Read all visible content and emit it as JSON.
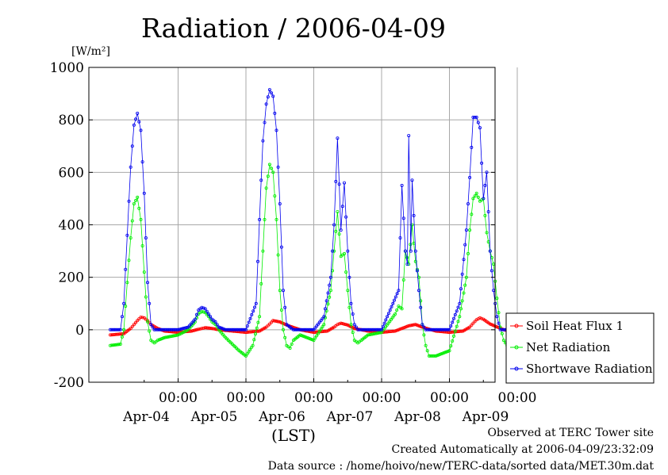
{
  "chart_data": {
    "type": "line",
    "title": "Radiation / 2006-04-09",
    "ylabel": "[W/m²]",
    "xlabel": "(LST)",
    "ylim": [
      -200,
      1000
    ],
    "yticks": [
      "1000",
      "800",
      "600",
      "400",
      "200",
      "0",
      "-200"
    ],
    "xlim": [
      0,
      6
    ],
    "xticks": [
      {
        "x": 1,
        "time": "00:00",
        "date": "Apr-04"
      },
      {
        "x": 2,
        "time": "00:00",
        "date": "Apr-05"
      },
      {
        "x": 3,
        "time": "00:00",
        "date": "Apr-06"
      },
      {
        "x": 4,
        "time": "00:00",
        "date": "Apr-07"
      },
      {
        "x": 5,
        "time": "00:00",
        "date": "Apr-08"
      },
      {
        "x": 6,
        "time": "00:00",
        "date": "Apr-09"
      }
    ],
    "grid": true,
    "legend_position": "right",
    "series": [
      {
        "name": "Soil Heat Flux 1",
        "color": "#ff0000",
        "x": [
          0,
          0.2,
          0.3,
          0.35,
          0.4,
          0.45,
          0.5,
          0.55,
          0.6,
          0.7,
          0.8,
          1.0,
          1.2,
          1.3,
          1.35,
          1.4,
          1.5,
          1.6,
          1.8,
          2.0,
          2.2,
          2.3,
          2.35,
          2.4,
          2.5,
          2.6,
          2.8,
          3.0,
          3.2,
          3.3,
          3.35,
          3.4,
          3.5,
          3.6,
          3.8,
          4.0,
          4.2,
          4.3,
          4.4,
          4.5,
          4.6,
          4.8,
          5.0,
          5.2,
          5.3,
          5.35,
          5.4,
          5.45,
          5.5,
          5.6,
          5.8,
          5.95
        ],
        "y": [
          -20,
          -15,
          5,
          20,
          35,
          48,
          45,
          35,
          20,
          5,
          -5,
          -10,
          -5,
          2,
          5,
          8,
          5,
          0,
          -5,
          -10,
          -5,
          10,
          22,
          35,
          30,
          18,
          0,
          -10,
          -5,
          10,
          20,
          25,
          18,
          5,
          -5,
          -10,
          -5,
          5,
          15,
          20,
          10,
          -5,
          -10,
          -5,
          10,
          25,
          38,
          45,
          40,
          22,
          0,
          -10
        ]
      },
      {
        "name": "Net Radiation",
        "color": "#00ee00",
        "x": [
          0,
          0.15,
          0.2,
          0.25,
          0.3,
          0.35,
          0.4,
          0.45,
          0.5,
          0.55,
          0.6,
          0.65,
          0.7,
          0.8,
          1.0,
          1.15,
          1.25,
          1.3,
          1.35,
          1.4,
          1.45,
          1.5,
          1.55,
          1.6,
          1.7,
          1.9,
          2.0,
          2.1,
          2.2,
          2.25,
          2.3,
          2.35,
          2.4,
          2.45,
          2.5,
          2.55,
          2.6,
          2.65,
          2.7,
          2.8,
          3.0,
          3.15,
          3.25,
          3.3,
          3.35,
          3.4,
          3.45,
          3.5,
          3.55,
          3.6,
          3.65,
          3.7,
          3.8,
          4.0,
          4.2,
          4.25,
          4.3,
          4.35,
          4.4,
          4.45,
          4.5,
          4.55,
          4.6,
          4.65,
          4.7,
          4.8,
          5.0,
          5.15,
          5.25,
          5.3,
          5.35,
          5.4,
          5.45,
          5.5,
          5.55,
          5.6,
          5.65,
          5.7,
          5.75,
          5.8,
          5.85,
          5.9,
          5.95
        ],
        "y": [
          -60,
          -55,
          0,
          180,
          350,
          480,
          505,
          420,
          220,
          30,
          -40,
          -50,
          -40,
          -30,
          -20,
          0,
          30,
          60,
          70,
          65,
          50,
          30,
          20,
          0,
          -30,
          -80,
          -100,
          -60,
          50,
          300,
          540,
          630,
          600,
          420,
          150,
          0,
          -60,
          -70,
          -40,
          -20,
          -40,
          20,
          150,
          300,
          450,
          280,
          290,
          150,
          20,
          -40,
          -50,
          -40,
          -20,
          -10,
          60,
          90,
          80,
          300,
          250,
          400,
          260,
          200,
          20,
          -60,
          -100,
          -100,
          -80,
          50,
          200,
          380,
          500,
          520,
          490,
          500,
          370,
          300,
          250,
          120,
          10,
          -40,
          -60,
          -50,
          -60
        ]
      },
      {
        "name": "Shortwave Radiation",
        "color": "#0000ee",
        "x": [
          0,
          0.15,
          0.2,
          0.25,
          0.3,
          0.35,
          0.4,
          0.45,
          0.5,
          0.55,
          0.6,
          0.65,
          0.7,
          0.8,
          1.0,
          1.15,
          1.25,
          1.3,
          1.35,
          1.4,
          1.45,
          1.5,
          1.55,
          1.6,
          1.7,
          2.0,
          2.15,
          2.2,
          2.25,
          2.3,
          2.35,
          2.4,
          2.45,
          2.5,
          2.55,
          2.6,
          2.7,
          3.0,
          3.15,
          3.25,
          3.3,
          3.35,
          3.4,
          3.45,
          3.5,
          3.55,
          3.6,
          3.65,
          3.7,
          4.0,
          4.25,
          4.3,
          4.35,
          4.38,
          4.4,
          4.43,
          4.45,
          4.5,
          4.55,
          4.6,
          4.65,
          4.7,
          5.0,
          5.15,
          5.25,
          5.3,
          5.35,
          5.4,
          5.45,
          5.5,
          5.55,
          5.6,
          5.65,
          5.7,
          5.75,
          5.8,
          5.95
        ],
        "y": [
          0,
          0,
          100,
          360,
          620,
          780,
          825,
          760,
          520,
          180,
          20,
          0,
          0,
          0,
          0,
          10,
          40,
          75,
          85,
          80,
          60,
          40,
          30,
          10,
          0,
          0,
          100,
          420,
          720,
          860,
          915,
          890,
          760,
          480,
          150,
          20,
          0,
          0,
          50,
          200,
          400,
          730,
          380,
          560,
          300,
          100,
          20,
          0,
          0,
          0,
          150,
          550,
          300,
          250,
          740,
          300,
          570,
          300,
          150,
          20,
          0,
          0,
          0,
          100,
          380,
          580,
          810,
          810,
          770,
          500,
          600,
          300,
          150,
          50,
          0,
          0,
          0
        ]
      }
    ]
  },
  "footer": {
    "line1": "Observed at TERC Tower site",
    "line2": "Created Automatically at 2006-04-09/23:32:09",
    "line3": "Data source : /home/hoivo/new/TERC-data/sorted  data/MET.30m.dat"
  }
}
